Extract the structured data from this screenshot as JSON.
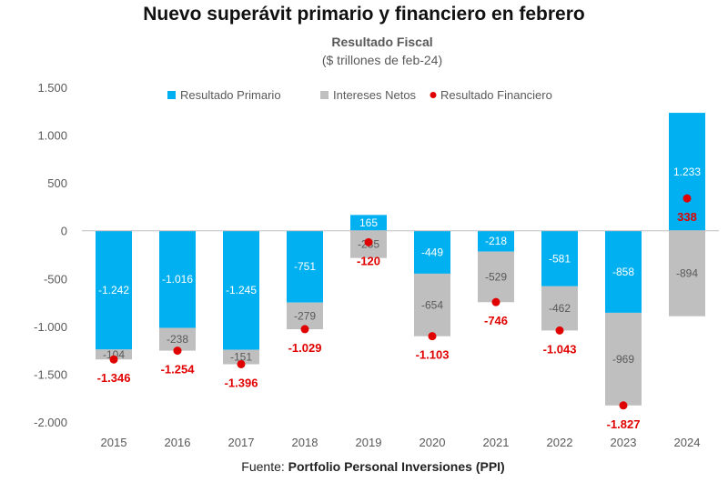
{
  "title": "Nuevo superávit primario y financiero en febrero",
  "chart_data": {
    "type": "bar",
    "title": "Resultado Fiscal",
    "subtitle": "($ trillones de feb-24)",
    "categories": [
      "2015",
      "2016",
      "2017",
      "2018",
      "2019",
      "2020",
      "2021",
      "2022",
      "2023",
      "2024"
    ],
    "series": [
      {
        "name": "Resultado Primario",
        "color": "#00b0f0",
        "values": [
          -1242,
          -1016,
          -1245,
          -751,
          165,
          -449,
          -218,
          -581,
          -858,
          1233
        ],
        "labels": [
          "-1.242",
          "-1.016",
          "-1.245",
          "-751",
          "165",
          "-449",
          "-218",
          "-581",
          "-858",
          "1.233"
        ]
      },
      {
        "name": "Intereses Netos",
        "color": "#bfbfbf",
        "values": [
          -104,
          -238,
          -151,
          -279,
          -285,
          -654,
          -529,
          -462,
          -969,
          -894
        ],
        "labels": [
          "-104",
          "-238",
          "-151",
          "-279",
          "-285",
          "-654",
          "-529",
          "-462",
          "-969",
          "-894"
        ]
      },
      {
        "name": "Resultado Financiero",
        "color": "#e00000",
        "values": [
          -1346,
          -1254,
          -1396,
          -1029,
          -120,
          -1103,
          -746,
          -1043,
          -1827,
          338
        ],
        "labels": [
          "-1.346",
          "-1.254",
          "-1.396",
          "-1.029",
          "-120",
          "-1.103",
          "-746",
          "-1.043",
          "-1.827",
          "338"
        ]
      }
    ],
    "ylim": [
      -2000,
      1500
    ],
    "yticks": [
      1500,
      1000,
      500,
      0,
      -500,
      -1000,
      -1500,
      -2000
    ],
    "ytick_labels": [
      "1.500",
      "1.000",
      "500",
      "0",
      "-500",
      "-1.000",
      "-1.500",
      "-2.000"
    ],
    "grid": false,
    "legend": "top"
  },
  "source": {
    "prefix": "Fuente: ",
    "name": "Portfolio Personal Inversiones (PPI)"
  }
}
